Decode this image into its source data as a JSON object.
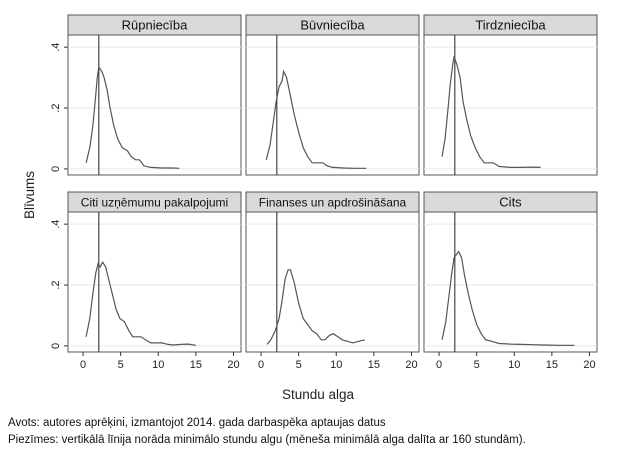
{
  "chart_data": {
    "type": "line",
    "ylabel": "Blīvums",
    "xlabel": "Stundu alga",
    "xlim": [
      -2,
      21
    ],
    "ylim": [
      -0.02,
      0.44
    ],
    "xticks": [
      "0",
      "5",
      "10",
      "15",
      "20"
    ],
    "xtick_values": [
      0,
      5,
      10,
      15,
      20
    ],
    "yticks": [
      "0",
      ".2",
      ".4"
    ],
    "ytick_values": [
      0,
      0.2,
      0.4
    ],
    "vline_x": 2.1,
    "grid": true,
    "line_color": "#555555",
    "panel_header_color": "#d9d9d9",
    "panels": [
      {
        "title": "Rūpniecība",
        "points": [
          [
            0.4,
            0.02
          ],
          [
            0.9,
            0.07
          ],
          [
            1.3,
            0.14
          ],
          [
            1.6,
            0.22
          ],
          [
            1.9,
            0.3
          ],
          [
            2.1,
            0.335
          ],
          [
            2.5,
            0.32
          ],
          [
            2.8,
            0.3
          ],
          [
            3.2,
            0.26
          ],
          [
            3.6,
            0.2
          ],
          [
            4.1,
            0.14
          ],
          [
            4.6,
            0.1
          ],
          [
            5.2,
            0.07
          ],
          [
            5.9,
            0.06
          ],
          [
            6.4,
            0.04
          ],
          [
            7.0,
            0.03
          ],
          [
            7.5,
            0.03
          ],
          [
            8.1,
            0.01
          ],
          [
            9.0,
            0.005
          ],
          [
            10.5,
            0.003
          ],
          [
            12.0,
            0.003
          ],
          [
            12.8,
            0.002
          ]
        ]
      },
      {
        "title": "Būvniecība",
        "points": [
          [
            0.7,
            0.03
          ],
          [
            1.2,
            0.08
          ],
          [
            1.6,
            0.15
          ],
          [
            2.0,
            0.22
          ],
          [
            2.4,
            0.27
          ],
          [
            2.8,
            0.29
          ],
          [
            3.0,
            0.32
          ],
          [
            3.4,
            0.3
          ],
          [
            3.9,
            0.24
          ],
          [
            4.4,
            0.18
          ],
          [
            5.0,
            0.12
          ],
          [
            5.6,
            0.07
          ],
          [
            6.2,
            0.04
          ],
          [
            6.8,
            0.02
          ],
          [
            7.5,
            0.02
          ],
          [
            8.2,
            0.02
          ],
          [
            8.8,
            0.01
          ],
          [
            9.5,
            0.005
          ],
          [
            11.0,
            0.003
          ],
          [
            12.5,
            0.002
          ],
          [
            14.0,
            0.002
          ]
        ]
      },
      {
        "title": "Tirdzniecība",
        "points": [
          [
            0.4,
            0.04
          ],
          [
            0.8,
            0.1
          ],
          [
            1.2,
            0.2
          ],
          [
            1.5,
            0.28
          ],
          [
            1.8,
            0.34
          ],
          [
            2.0,
            0.37
          ],
          [
            2.4,
            0.34
          ],
          [
            2.8,
            0.3
          ],
          [
            3.2,
            0.22
          ],
          [
            3.7,
            0.16
          ],
          [
            4.2,
            0.11
          ],
          [
            4.8,
            0.07
          ],
          [
            5.4,
            0.04
          ],
          [
            6.0,
            0.02
          ],
          [
            6.6,
            0.02
          ],
          [
            7.2,
            0.02
          ],
          [
            8.0,
            0.008
          ],
          [
            9.5,
            0.005
          ],
          [
            11.0,
            0.005
          ],
          [
            12.5,
            0.006
          ],
          [
            13.5,
            0.005
          ]
        ]
      },
      {
        "title": "Citi uzņēmumu pakalpojumi",
        "points": [
          [
            0.4,
            0.03
          ],
          [
            0.9,
            0.09
          ],
          [
            1.3,
            0.17
          ],
          [
            1.7,
            0.24
          ],
          [
            2.0,
            0.27
          ],
          [
            2.3,
            0.26
          ],
          [
            2.6,
            0.275
          ],
          [
            3.0,
            0.26
          ],
          [
            3.4,
            0.22
          ],
          [
            3.9,
            0.17
          ],
          [
            4.4,
            0.12
          ],
          [
            4.9,
            0.09
          ],
          [
            5.5,
            0.08
          ],
          [
            6.1,
            0.05
          ],
          [
            6.6,
            0.03
          ],
          [
            7.2,
            0.03
          ],
          [
            7.7,
            0.03
          ],
          [
            8.3,
            0.02
          ],
          [
            9.0,
            0.01
          ],
          [
            9.8,
            0.01
          ],
          [
            10.5,
            0.01
          ],
          [
            11.3,
            0.005
          ],
          [
            12.0,
            0.003
          ],
          [
            13.0,
            0.005
          ],
          [
            14.0,
            0.006
          ],
          [
            15.0,
            0.002
          ]
        ]
      },
      {
        "title": "Finanses un apdrošināšana",
        "points": [
          [
            0.8,
            0.005
          ],
          [
            1.3,
            0.02
          ],
          [
            1.9,
            0.05
          ],
          [
            2.4,
            0.09
          ],
          [
            2.8,
            0.15
          ],
          [
            3.2,
            0.22
          ],
          [
            3.6,
            0.25
          ],
          [
            3.9,
            0.25
          ],
          [
            4.4,
            0.21
          ],
          [
            5.0,
            0.14
          ],
          [
            5.6,
            0.09
          ],
          [
            6.2,
            0.07
          ],
          [
            6.8,
            0.05
          ],
          [
            7.4,
            0.04
          ],
          [
            8.0,
            0.02
          ],
          [
            8.5,
            0.02
          ],
          [
            9.1,
            0.035
          ],
          [
            9.6,
            0.04
          ],
          [
            10.2,
            0.03
          ],
          [
            10.8,
            0.02
          ],
          [
            11.5,
            0.015
          ],
          [
            12.2,
            0.01
          ],
          [
            13.0,
            0.015
          ],
          [
            13.8,
            0.02
          ]
        ]
      },
      {
        "title": "Cits",
        "points": [
          [
            0.4,
            0.02
          ],
          [
            0.9,
            0.08
          ],
          [
            1.3,
            0.16
          ],
          [
            1.7,
            0.24
          ],
          [
            2.0,
            0.29
          ],
          [
            2.3,
            0.3
          ],
          [
            2.6,
            0.31
          ],
          [
            3.0,
            0.29
          ],
          [
            3.4,
            0.23
          ],
          [
            3.9,
            0.17
          ],
          [
            4.4,
            0.12
          ],
          [
            5.0,
            0.07
          ],
          [
            5.6,
            0.04
          ],
          [
            6.2,
            0.02
          ],
          [
            7.0,
            0.015
          ],
          [
            8.0,
            0.008
          ],
          [
            9.5,
            0.006
          ],
          [
            11.0,
            0.005
          ],
          [
            12.5,
            0.004
          ],
          [
            14.0,
            0.003
          ],
          [
            16.0,
            0.002
          ],
          [
            18.0,
            0.002
          ]
        ]
      }
    ]
  },
  "notes": {
    "source": "Avots: autores aprēķini, izmantojot 2014. gada darbaspēka aptaujas datus",
    "remark": "Piezīmes: vertikālā līnija norāda minimālo stundu algu (mēneša minimālā alga dalīta ar 160 stundām)."
  }
}
